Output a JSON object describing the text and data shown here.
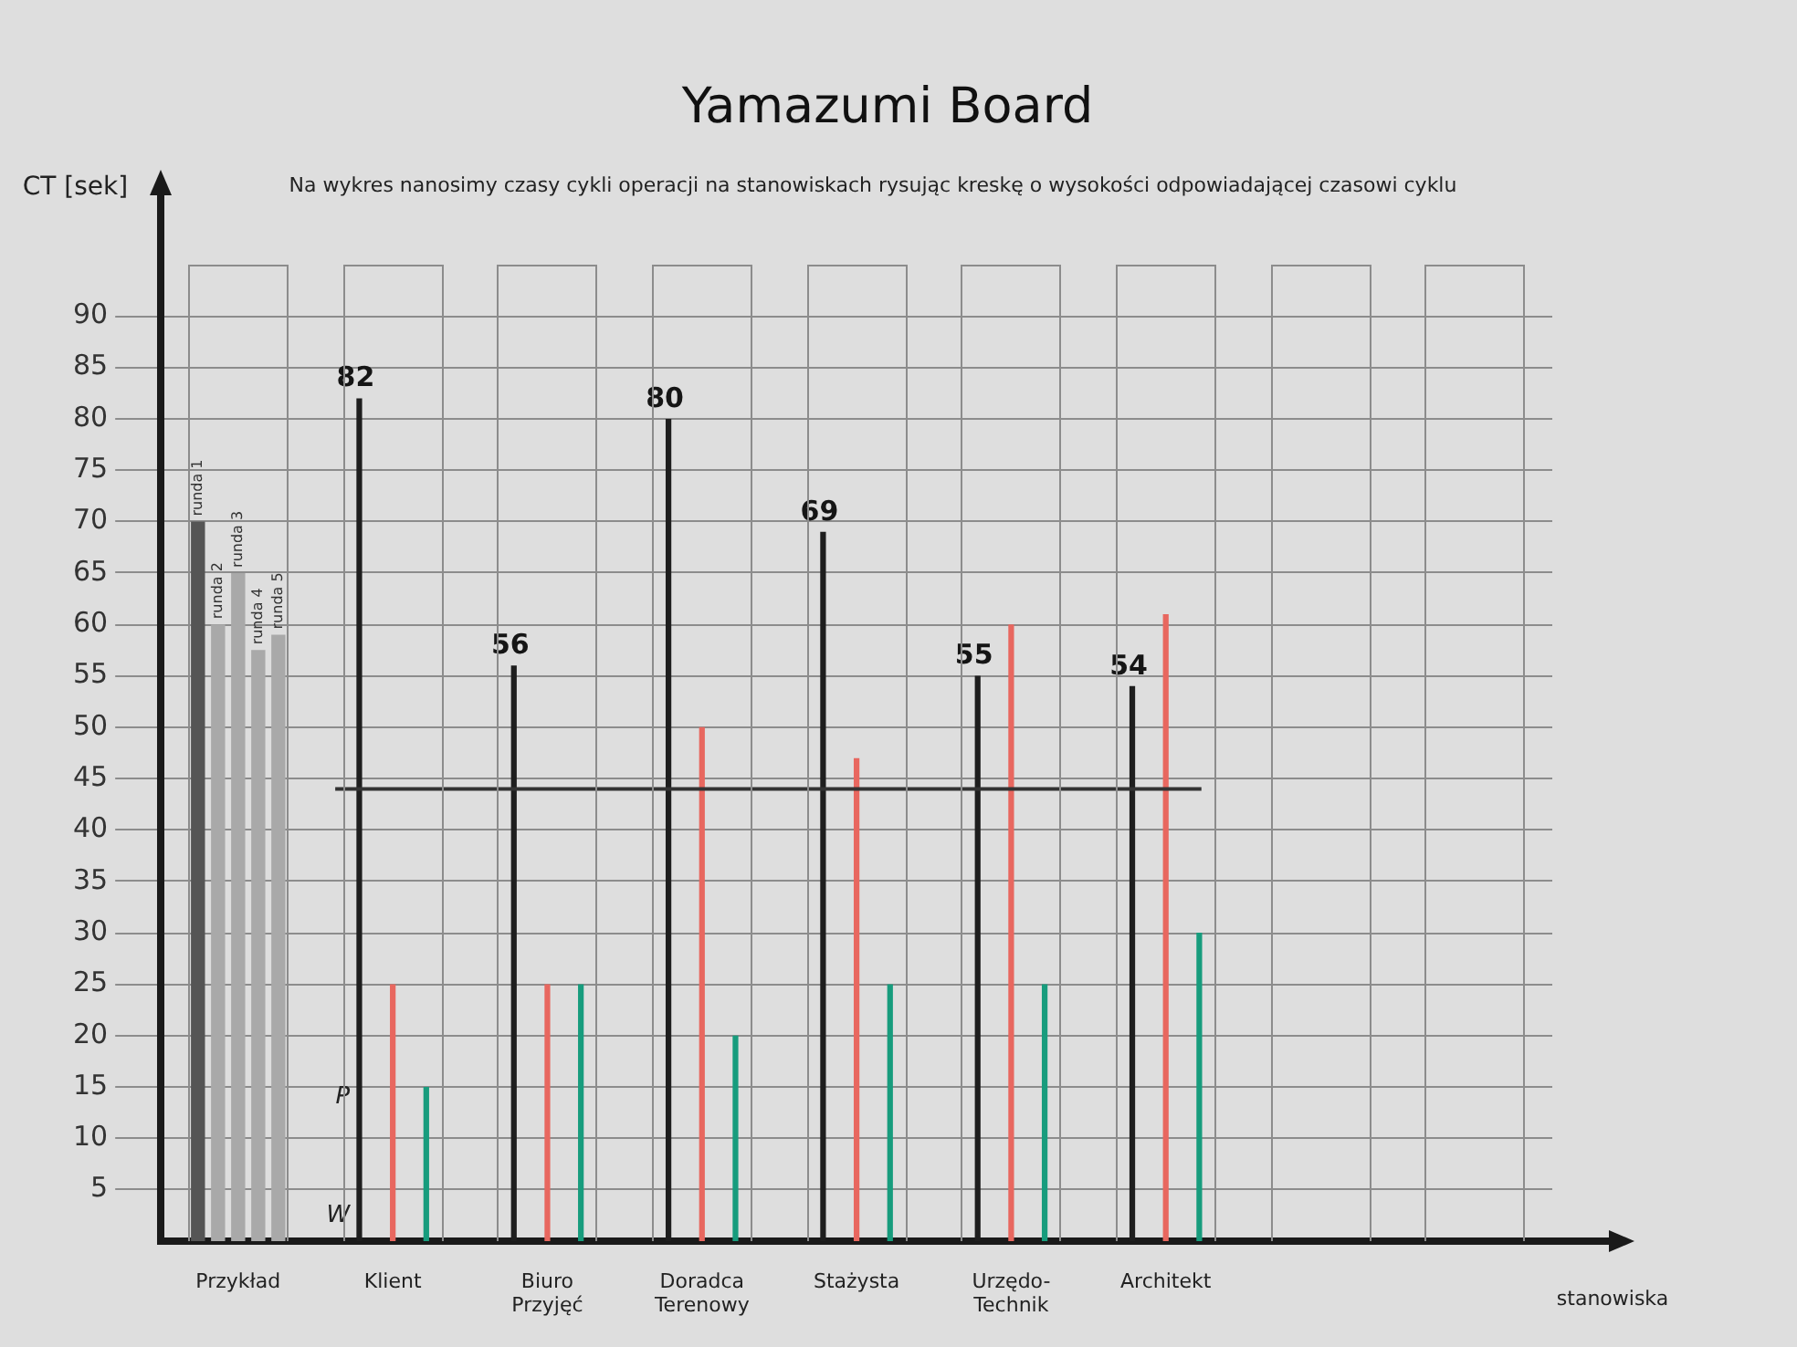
{
  "chart_data": {
    "type": "bar",
    "title": "Yamazumi Board",
    "subtitle": "Na wykres nanosimy czasy cykli operacji na stanowiskach rysując kreskę o wysokości odpowiadającej czasowi cyklu",
    "xlabel": "stanowiska",
    "ylabel": "CT [sek]",
    "categories": [
      "Przykład",
      "Klient",
      "Biuro Przyjęć",
      "Doradca Terenowy",
      "Stażysta",
      "Urzędo-Technik",
      "Architekt",
      null,
      null
    ],
    "series": [
      {
        "name": "runda 1",
        "color": "#555555",
        "values": [
          70,
          null,
          null,
          null,
          null,
          null,
          null,
          null,
          null
        ]
      },
      {
        "name": "runda 2",
        "color": "#a9a9a9",
        "values": [
          60,
          null,
          null,
          null,
          null,
          null,
          null,
          null,
          null
        ]
      },
      {
        "name": "runda 3",
        "color": "#a9a9a9",
        "values": [
          65,
          null,
          null,
          null,
          null,
          null,
          null,
          null,
          null
        ]
      },
      {
        "name": "runda 4",
        "color": "#a9a9a9",
        "values": [
          57.5,
          null,
          null,
          null,
          null,
          null,
          null,
          null,
          null
        ]
      },
      {
        "name": "runda 5",
        "color": "#a9a9a9",
        "values": [
          59,
          null,
          null,
          null,
          null,
          null,
          null,
          null,
          null
        ]
      },
      {
        "color": "#1e1e1e",
        "values": [
          null,
          82,
          56,
          80,
          69,
          55,
          54,
          null,
          null
        ],
        "value_labels": [
          null,
          "82",
          "56",
          "80",
          "69",
          "55",
          "54",
          null,
          null
        ]
      },
      {
        "color": "#e8675f",
        "values": [
          null,
          25,
          25,
          50,
          47,
          60,
          61,
          null,
          null
        ]
      },
      {
        "color": "#179c7d",
        "values": [
          null,
          15,
          25,
          20,
          25,
          25,
          30,
          null,
          null
        ]
      }
    ],
    "ylim": [
      0,
      95
    ],
    "yticks": [
      5,
      10,
      15,
      20,
      25,
      30,
      35,
      40,
      45,
      50,
      55,
      60,
      65,
      70,
      75,
      80,
      85,
      90
    ],
    "grid": "y",
    "ref_lines": [
      {
        "axis": "y",
        "value": 44,
        "color": "#333333"
      }
    ],
    "annotations": [
      {
        "text": "P",
        "x": "Klient",
        "y": 14
      },
      {
        "text": "W",
        "x": "Klient",
        "y": 2.5
      }
    ]
  }
}
